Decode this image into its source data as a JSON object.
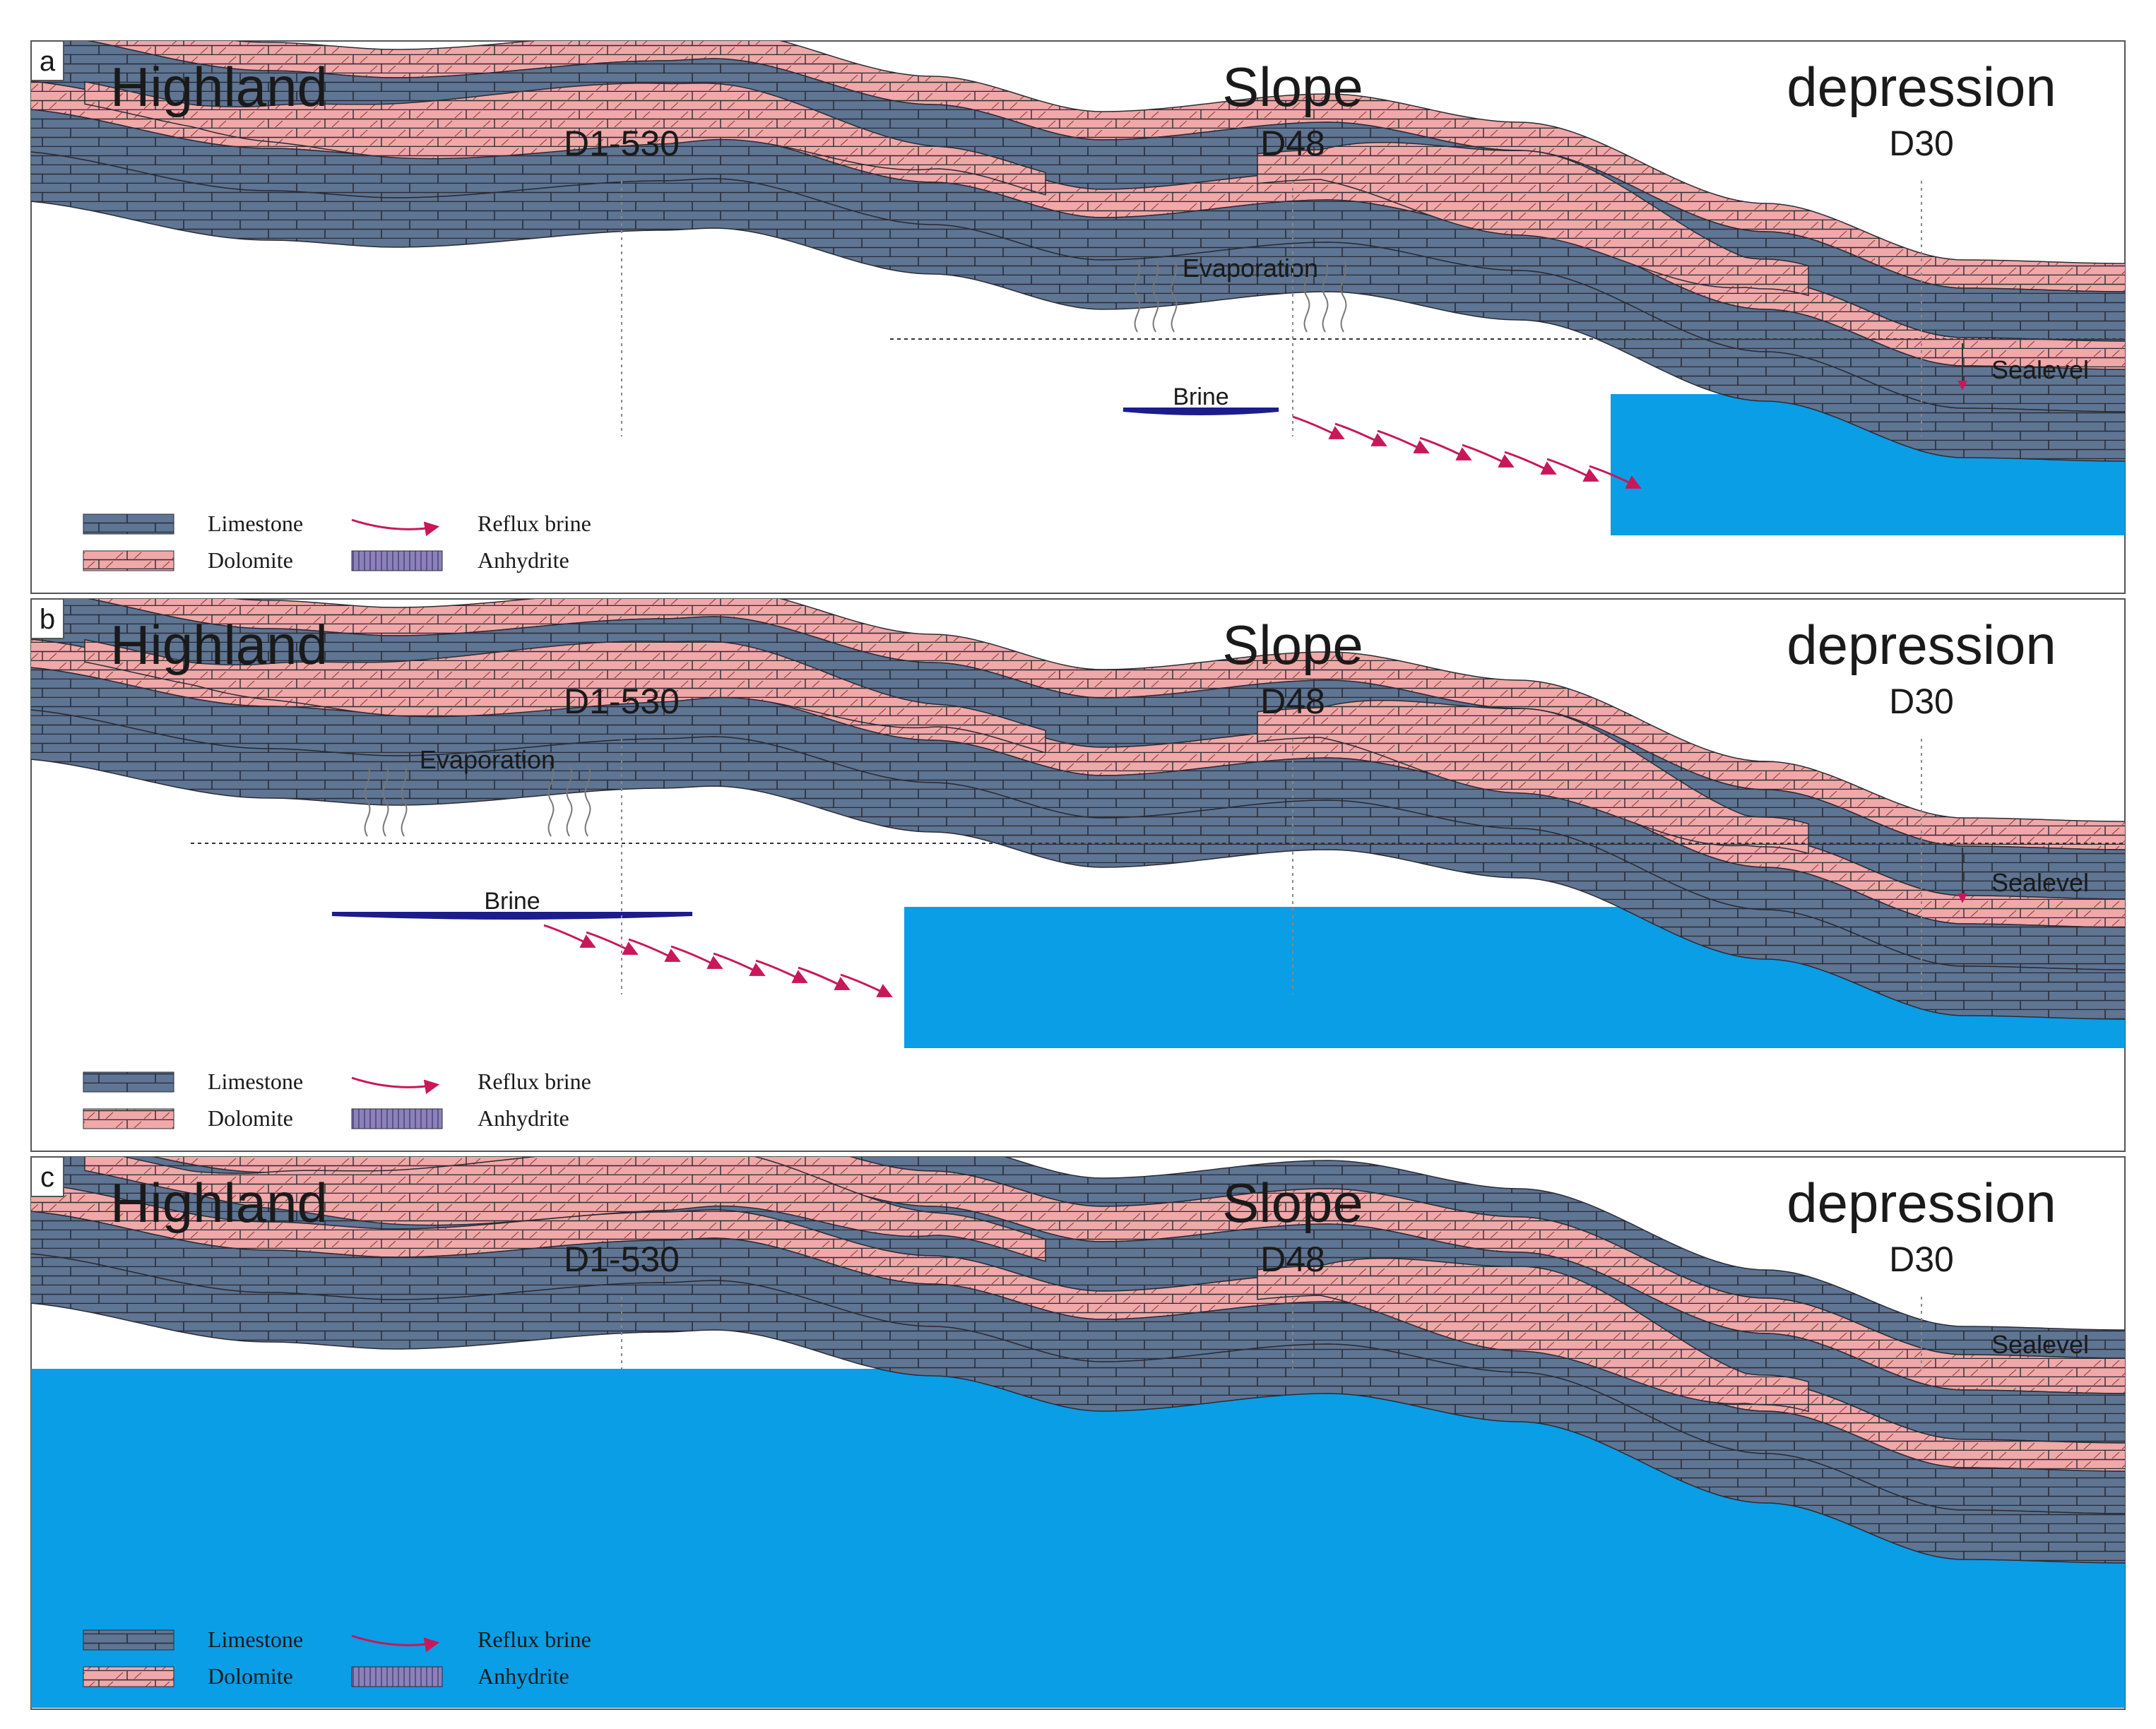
{
  "figure": {
    "colors": {
      "limestone": "#5e7593",
      "dolomite": "#f0a8a8",
      "anhydrite": "#8c82b8",
      "seawater": "#0a9ee6",
      "brine": "#1c1c8c",
      "refluxArrow": "#c8185a",
      "brickLine": "#2b2b35",
      "text": "#1a1a1a"
    },
    "panels": [
      {
        "label": "a",
        "regions": [
          "Highland",
          "Slope",
          "depression"
        ],
        "wells": [
          "D1-530",
          "D48",
          "D30"
        ],
        "evaporation": "Evaporation",
        "brine": "Brine",
        "sealevel": "Sealevel",
        "legend": {
          "limestone": "Limestone",
          "dolomite": "Dolomite",
          "refluxBrine": "Reflux brine",
          "anhydrite": "Anhydrite"
        }
      },
      {
        "label": "b",
        "regions": [
          "Highland",
          "Slope",
          "depression"
        ],
        "wells": [
          "D1-530",
          "D48",
          "D30"
        ],
        "evaporation": "Evaporation",
        "brine": "Brine",
        "sealevel": "Sealevel",
        "legend": {
          "limestone": "Limestone",
          "dolomite": "Dolomite",
          "refluxBrine": "Reflux brine",
          "anhydrite": "Anhydrite"
        }
      },
      {
        "label": "c",
        "regions": [
          "Highland",
          "Slope",
          "depression"
        ],
        "wells": [
          "D1-530",
          "D48",
          "D30"
        ],
        "sealevel": "Sealevel",
        "legend": {
          "limestone": "Limestone",
          "dolomite": "Dolomite",
          "refluxBrine": "Reflux brine",
          "anhydrite": "Anhydrite"
        }
      }
    ]
  }
}
